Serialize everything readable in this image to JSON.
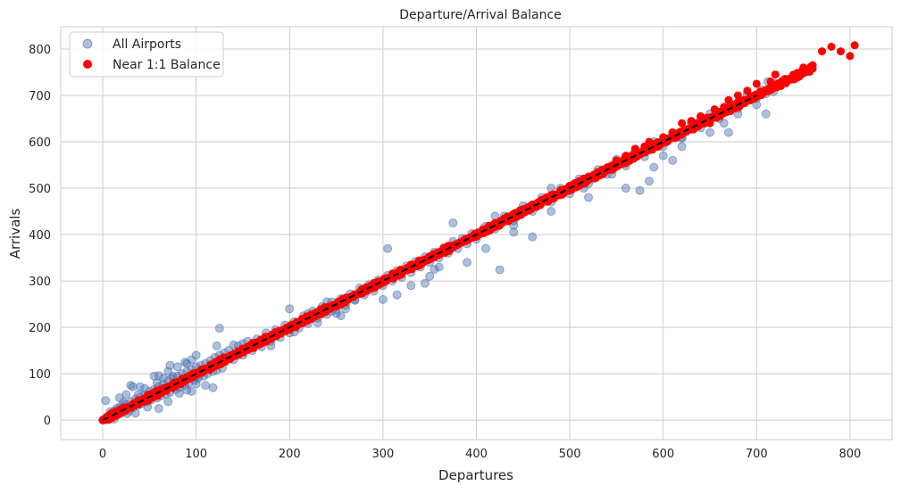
{
  "chart_data": {
    "type": "scatter",
    "title": "Departure/Arrival Balance",
    "xlabel": "Departures",
    "ylabel": "Arrivals",
    "xlim": [
      -45,
      845
    ],
    "ylim": [
      -42,
      848
    ],
    "xticks": [
      0,
      100,
      200,
      300,
      400,
      500,
      600,
      700,
      800
    ],
    "yticks": [
      0,
      100,
      200,
      300,
      400,
      500,
      600,
      700,
      800
    ],
    "grid": true,
    "legend_position": "top-left",
    "series": [
      {
        "name": "All Airports",
        "color": "#4c72b0",
        "alpha": 0.45,
        "points": [
          [
            0,
            0
          ],
          [
            2,
            3
          ],
          [
            5,
            8
          ],
          [
            8,
            4
          ],
          [
            10,
            14
          ],
          [
            12,
            20
          ],
          [
            15,
            10
          ],
          [
            18,
            28
          ],
          [
            20,
            16
          ],
          [
            22,
            30
          ],
          [
            25,
            34
          ],
          [
            28,
            20
          ],
          [
            30,
            40
          ],
          [
            32,
            26
          ],
          [
            35,
            45
          ],
          [
            38,
            32
          ],
          [
            40,
            50
          ],
          [
            42,
            36
          ],
          [
            45,
            55
          ],
          [
            48,
            40
          ],
          [
            50,
            62
          ],
          [
            52,
            44
          ],
          [
            55,
            66
          ],
          [
            58,
            48
          ],
          [
            60,
            72
          ],
          [
            62,
            52
          ],
          [
            65,
            78
          ],
          [
            68,
            56
          ],
          [
            70,
            85
          ],
          [
            72,
            60
          ],
          [
            75,
            90
          ],
          [
            78,
            66
          ],
          [
            80,
            95
          ],
          [
            82,
            70
          ],
          [
            85,
            100
          ],
          [
            88,
            75
          ],
          [
            90,
            105
          ],
          [
            92,
            80
          ],
          [
            95,
            110
          ],
          [
            98,
            86
          ],
          [
            100,
            115
          ],
          [
            102,
            90
          ],
          [
            105,
            118
          ],
          [
            108,
            95
          ],
          [
            110,
            122
          ],
          [
            112,
            100
          ],
          [
            115,
            128
          ],
          [
            118,
            105
          ],
          [
            120,
            135
          ],
          [
            122,
            108
          ],
          [
            125,
            140
          ],
          [
            128,
            112
          ],
          [
            130,
            145
          ],
          [
            135,
            150
          ],
          [
            140,
            130
          ],
          [
            145,
            160
          ],
          [
            150,
            140
          ],
          [
            155,
            170
          ],
          [
            160,
            150
          ],
          [
            165,
            175
          ],
          [
            170,
            158
          ],
          [
            175,
            188
          ],
          [
            180,
            170
          ],
          [
            185,
            195
          ],
          [
            190,
            178
          ],
          [
            195,
            205
          ],
          [
            200,
            188
          ],
          [
            205,
            212
          ],
          [
            210,
            198
          ],
          [
            215,
            225
          ],
          [
            220,
            208
          ],
          [
            225,
            235
          ],
          [
            230,
            220
          ],
          [
            235,
            245
          ],
          [
            240,
            228
          ],
          [
            245,
            255
          ],
          [
            250,
            238
          ],
          [
            255,
            262
          ],
          [
            260,
            248
          ],
          [
            265,
            272
          ],
          [
            270,
            258
          ],
          [
            275,
            285
          ],
          [
            280,
            270
          ],
          [
            285,
            292
          ],
          [
            290,
            278
          ],
          [
            295,
            302
          ],
          [
            300,
            290
          ],
          [
            305,
            312
          ],
          [
            310,
            300
          ],
          [
            315,
            322
          ],
          [
            320,
            308
          ],
          [
            325,
            332
          ],
          [
            330,
            318
          ],
          [
            335,
            342
          ],
          [
            340,
            330
          ],
          [
            345,
            352
          ],
          [
            350,
            340
          ],
          [
            355,
            362
          ],
          [
            360,
            350
          ],
          [
            365,
            372
          ],
          [
            370,
            360
          ],
          [
            375,
            385
          ],
          [
            380,
            370
          ],
          [
            385,
            392
          ],
          [
            390,
            380
          ],
          [
            395,
            402
          ],
          [
            400,
            390
          ],
          [
            410,
            418
          ],
          [
            420,
            412
          ],
          [
            430,
            440
          ],
          [
            440,
            430
          ],
          [
            450,
            462
          ],
          [
            460,
            450
          ],
          [
            470,
            480
          ],
          [
            480,
            470
          ],
          [
            490,
            500
          ],
          [
            500,
            488
          ],
          [
            510,
            520
          ],
          [
            520,
            510
          ],
          [
            530,
            540
          ],
          [
            540,
            530
          ],
          [
            550,
            562
          ],
          [
            560,
            548
          ],
          [
            570,
            580
          ],
          [
            580,
            568
          ],
          [
            590,
            600
          ],
          [
            600,
            590
          ],
          [
            610,
            620
          ],
          [
            620,
            608
          ],
          [
            630,
            640
          ],
          [
            640,
            630
          ],
          [
            650,
            660
          ],
          [
            660,
            650
          ],
          [
            670,
            680
          ],
          [
            680,
            672
          ],
          [
            690,
            702
          ],
          [
            700,
            694
          ],
          [
            705,
            712
          ],
          [
            710,
            704
          ],
          [
            720,
            726
          ],
          [
            3,
            42
          ],
          [
            18,
            48
          ],
          [
            25,
            55
          ],
          [
            32,
            72
          ],
          [
            40,
            72
          ],
          [
            55,
            95
          ],
          [
            60,
            96
          ],
          [
            70,
            105
          ],
          [
            72,
            118
          ],
          [
            80,
            115
          ],
          [
            90,
            122
          ],
          [
            95,
            130
          ],
          [
            60,
            25
          ],
          [
            70,
            40
          ],
          [
            82,
            58
          ],
          [
            90,
            65
          ],
          [
            95,
            62
          ],
          [
            100,
            78
          ],
          [
            103,
            95
          ],
          [
            110,
            75
          ],
          [
            48,
            28
          ],
          [
            35,
            15
          ],
          [
            26,
            14
          ],
          [
            12,
            2
          ],
          [
            30,
            75
          ],
          [
            122,
            160
          ],
          [
            125,
            198
          ],
          [
            140,
            162
          ],
          [
            150,
            165
          ],
          [
            200,
            240
          ],
          [
            205,
            190
          ],
          [
            230,
            210
          ],
          [
            245,
            235
          ],
          [
            250,
            230
          ],
          [
            255,
            225
          ],
          [
            260,
            240
          ],
          [
            305,
            370
          ],
          [
            315,
            270
          ],
          [
            330,
            290
          ],
          [
            345,
            295
          ],
          [
            350,
            310
          ],
          [
            355,
            325
          ],
          [
            375,
            425
          ],
          [
            390,
            340
          ],
          [
            410,
            370
          ],
          [
            425,
            324
          ],
          [
            440,
            405
          ],
          [
            460,
            395
          ],
          [
            480,
            450
          ],
          [
            505,
            510
          ],
          [
            515,
            500
          ],
          [
            525,
            520
          ],
          [
            545,
            530
          ],
          [
            560,
            500
          ],
          [
            575,
            495
          ],
          [
            585,
            515
          ],
          [
            590,
            545
          ],
          [
            600,
            570
          ],
          [
            610,
            560
          ],
          [
            620,
            610
          ],
          [
            650,
            620
          ],
          [
            665,
            640
          ],
          [
            670,
            620
          ],
          [
            680,
            660
          ],
          [
            690,
            690
          ],
          [
            700,
            680
          ],
          [
            710,
            660
          ],
          [
            712,
            730
          ],
          [
            718,
            708
          ],
          [
            620,
            590
          ],
          [
            640,
            650
          ],
          [
            520,
            480
          ],
          [
            480,
            500
          ],
          [
            440,
            420
          ],
          [
            420,
            440
          ],
          [
            360,
            330
          ],
          [
            300,
            260
          ],
          [
            270,
            260
          ],
          [
            240,
            255
          ],
          [
            220,
            230
          ],
          [
            180,
            160
          ],
          [
            150,
            150
          ],
          [
            145,
            140
          ],
          [
            118,
            70
          ],
          [
            100,
            140
          ],
          [
            88,
            125
          ],
          [
            75,
            95
          ],
          [
            65,
            90
          ],
          [
            58,
            80
          ],
          [
            45,
            68
          ],
          [
            38,
            55
          ],
          [
            22,
            38
          ],
          [
            15,
            25
          ],
          [
            8,
            18
          ],
          [
            6,
            1
          ]
        ]
      },
      {
        "name": "Near 1:1 Balance",
        "color": "#ff0000",
        "alpha": 1,
        "line_start": 0,
        "line_end": 800,
        "band": 10,
        "extra_points": [
          [
            780,
            805
          ],
          [
            790,
            795
          ],
          [
            800,
            785
          ],
          [
            805,
            808
          ],
          [
            770,
            795
          ],
          [
            760,
            765
          ],
          [
            750,
            760
          ],
          [
            740,
            740
          ],
          [
            730,
            735
          ],
          [
            720,
            745
          ],
          [
            715,
            730
          ],
          [
            700,
            725
          ],
          [
            690,
            710
          ],
          [
            680,
            700
          ],
          [
            670,
            690
          ],
          [
            665,
            675
          ],
          [
            655,
            670
          ],
          [
            650,
            640
          ],
          [
            640,
            655
          ],
          [
            635,
            640
          ],
          [
            630,
            645
          ],
          [
            620,
            640
          ],
          [
            610,
            620
          ],
          [
            600,
            610
          ],
          [
            590,
            595
          ],
          [
            585,
            600
          ],
          [
            580,
            590
          ],
          [
            570,
            585
          ],
          [
            560,
            570
          ],
          [
            550,
            560
          ],
          [
            540,
            545
          ],
          [
            530,
            535
          ],
          [
            520,
            525
          ],
          [
            510,
            515
          ],
          [
            500,
            505
          ],
          [
            490,
            495
          ],
          [
            480,
            485
          ],
          [
            470,
            475
          ],
          [
            460,
            465
          ],
          [
            450,
            455
          ],
          [
            440,
            445
          ],
          [
            430,
            435
          ],
          [
            420,
            425
          ],
          [
            410,
            412
          ],
          [
            400,
            400
          ]
        ]
      },
      {
        "name": "1:1 reference",
        "color": "#000000",
        "dashed": true,
        "from": [
          0,
          0
        ],
        "to": [
          700,
          700
        ]
      }
    ]
  }
}
